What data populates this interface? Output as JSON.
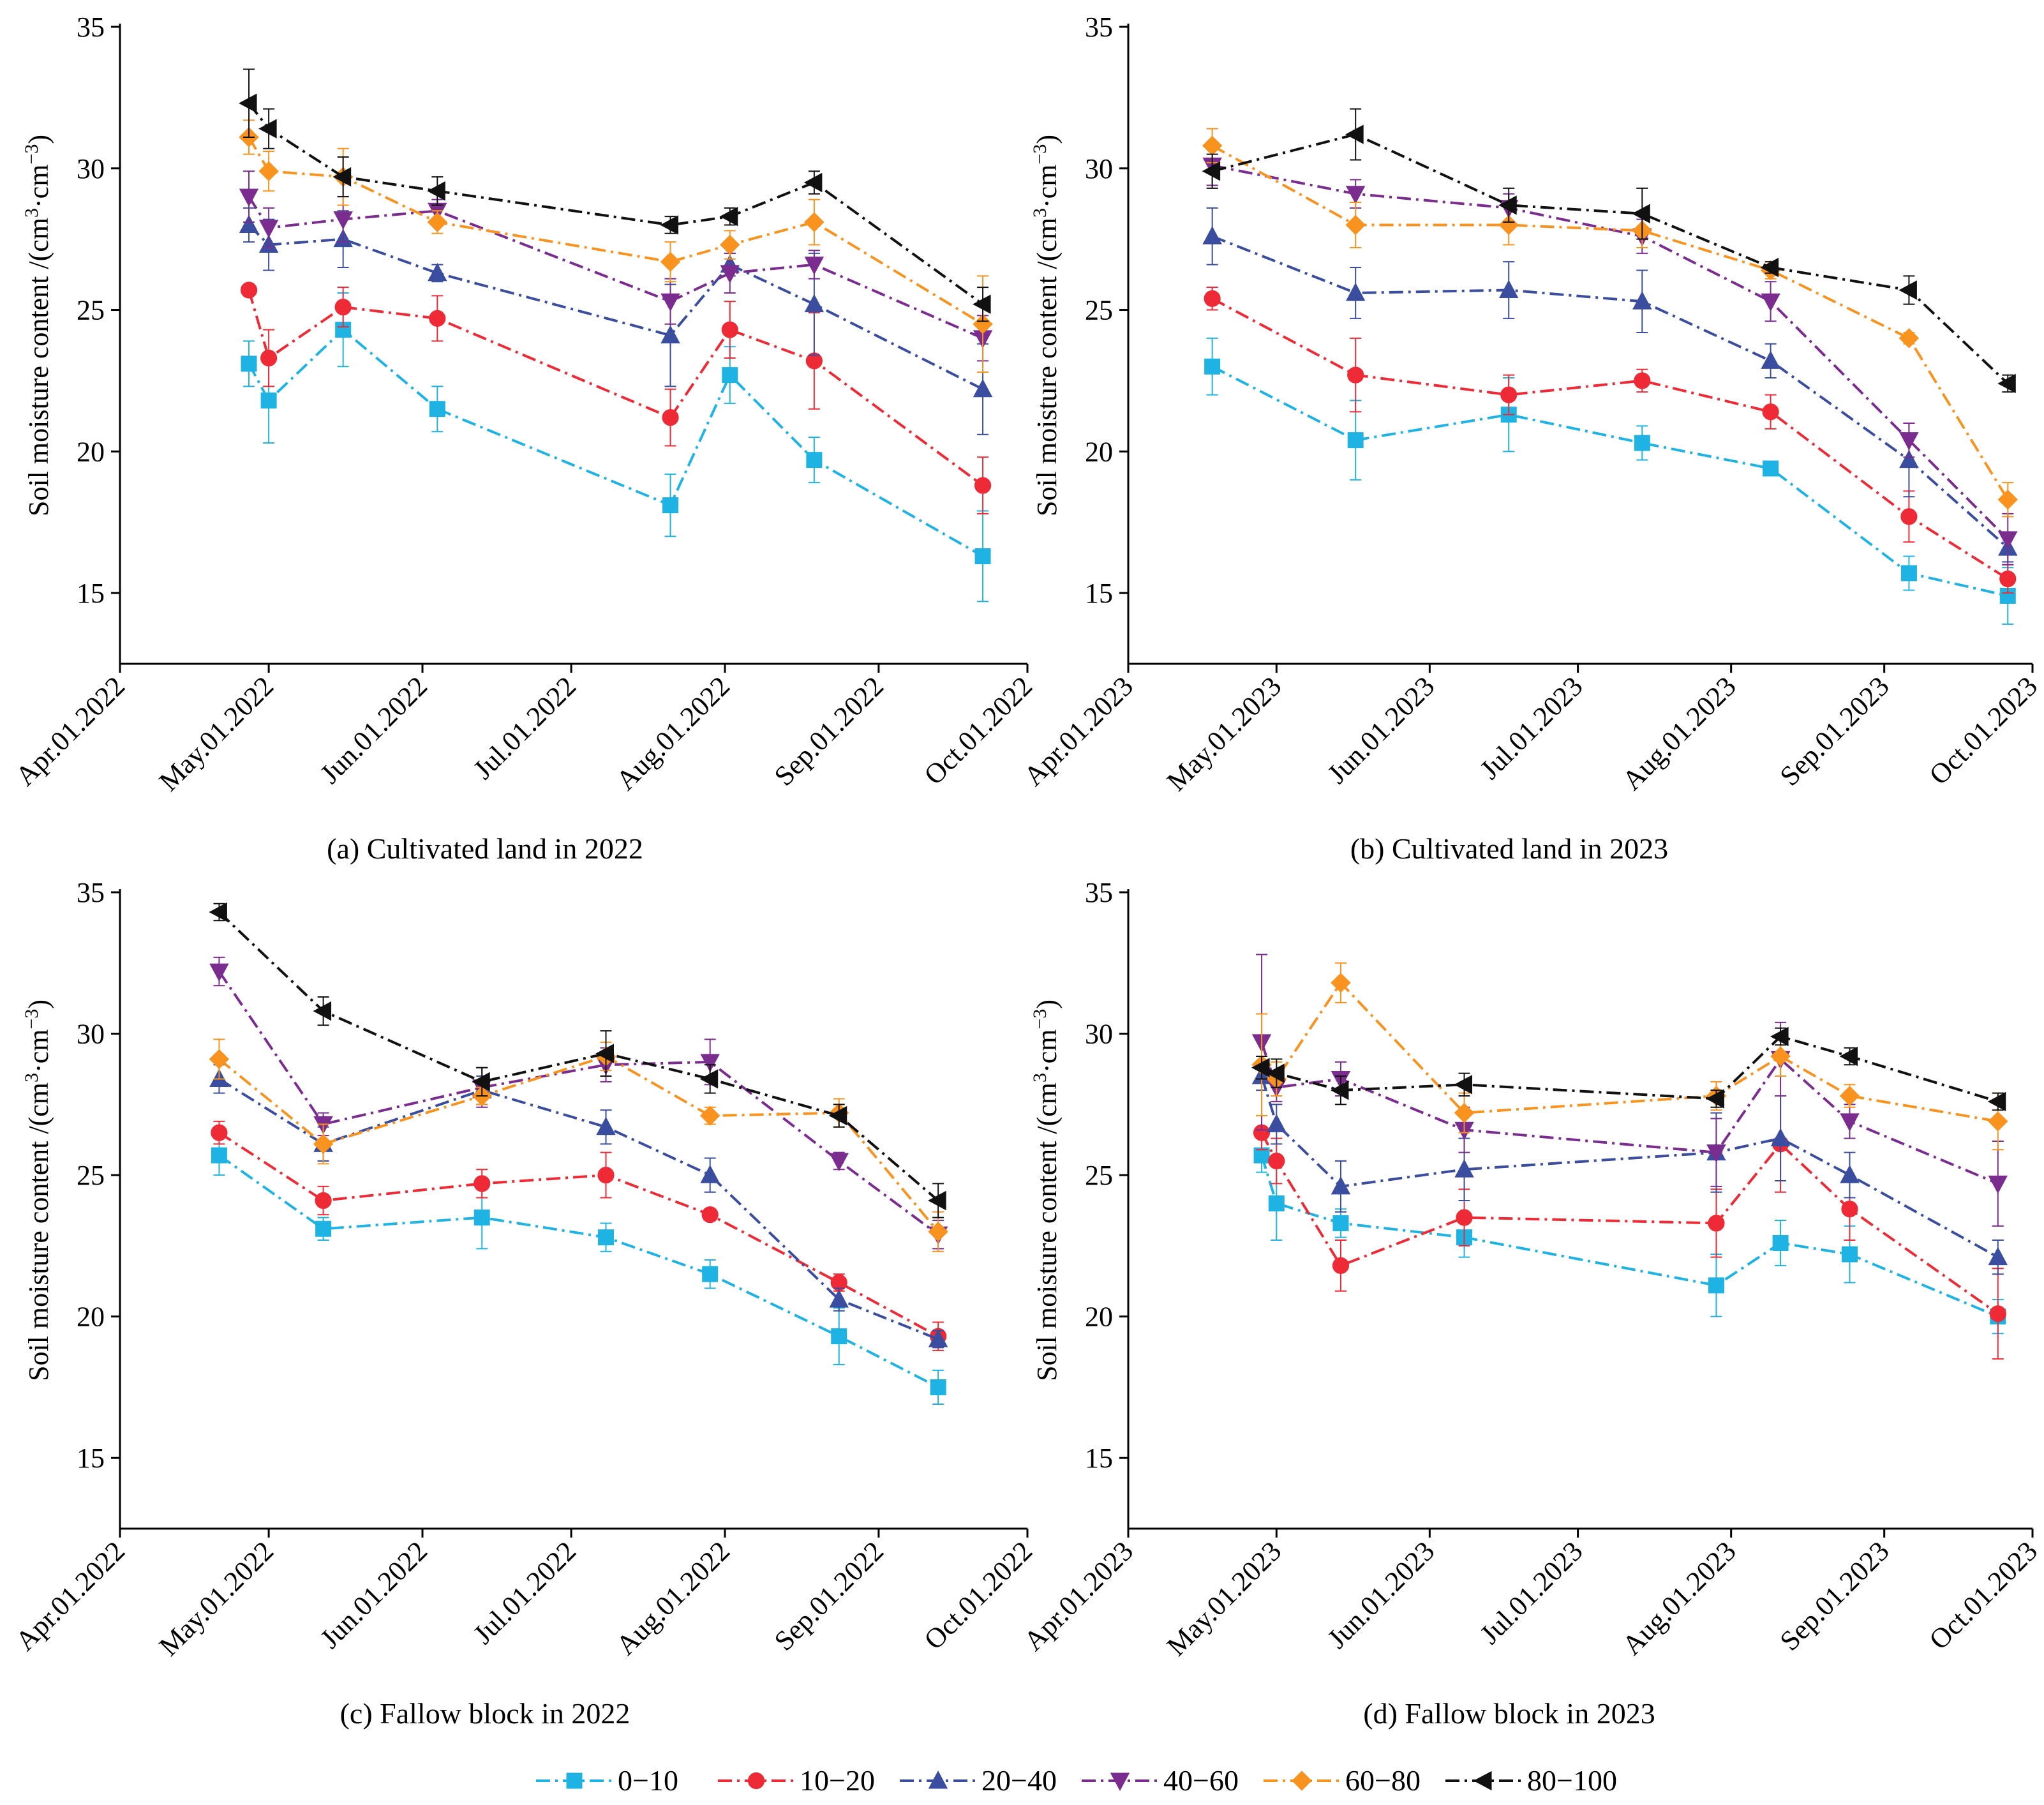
{
  "figure": {
    "ylabel": "Soil moisture content /(cm³·cm⁻³)",
    "ylabel_base": "Soil moisture content /(cm",
    "ylabel_sup1": "3",
    "ylabel_mid": "·cm",
    "ylabel_sup2": "−3",
    "ylabel_end": ")"
  },
  "legend": [
    {
      "label": "0−10",
      "color": "#1fb3e3",
      "marker": "square"
    },
    {
      "label": "10−20",
      "color": "#ee2a36",
      "marker": "circle"
    },
    {
      "label": "20−40",
      "color": "#3b4d9e",
      "marker": "triangle-up"
    },
    {
      "label": "40−60",
      "color": "#7a2c8f",
      "marker": "triangle-down"
    },
    {
      "label": "60−80",
      "color": "#f7931e",
      "marker": "diamond"
    },
    {
      "label": "80−100",
      "color": "#111111",
      "marker": "triangle-left"
    }
  ],
  "chart_data": [
    {
      "type": "line",
      "caption": "(a) Cultivated land in 2022",
      "ylim": [
        12.5,
        35
      ],
      "yticks": [
        15,
        20,
        25,
        30,
        35
      ],
      "x_start_label": "Apr.01.2022",
      "xtick_labels": [
        "Apr.01.2022",
        "May.01.2022",
        "Jun.01.2022",
        "Jul.01.2022",
        "Aug.01.2022",
        "Sep.01.2022",
        "Oct.01.2022"
      ],
      "xlim_days": [
        0,
        183
      ],
      "x_days": [
        26,
        30,
        45,
        64,
        111,
        123,
        140,
        174
      ],
      "series": [
        {
          "name": "0−10",
          "values": [
            23.1,
            21.8,
            24.3,
            21.5,
            18.1,
            22.7,
            19.7,
            16.3
          ],
          "errors": [
            0.8,
            1.5,
            1.3,
            0.8,
            1.1,
            1.0,
            0.8,
            1.6
          ]
        },
        {
          "name": "10−20",
          "values": [
            25.7,
            23.3,
            25.1,
            24.7,
            21.2,
            24.3,
            23.2,
            18.8
          ],
          "errors": [
            0.2,
            1.0,
            0.7,
            0.8,
            1.0,
            1.0,
            1.7,
            1.0
          ]
        },
        {
          "name": "20−40",
          "values": [
            28.0,
            27.3,
            27.5,
            26.3,
            24.1,
            26.6,
            25.2,
            22.2
          ],
          "errors": [
            0.6,
            0.9,
            1.0,
            0.3,
            1.8,
            0.4,
            1.8,
            1.6
          ]
        },
        {
          "name": "40−60",
          "values": [
            29.0,
            27.9,
            28.2,
            28.5,
            25.3,
            26.3,
            26.6,
            24.0
          ],
          "errors": [
            0.9,
            0.7,
            0.8,
            0.4,
            0.8,
            0.7,
            0.5,
            0.8
          ]
        },
        {
          "name": "60−80",
          "values": [
            31.1,
            29.9,
            29.7,
            28.1,
            26.7,
            27.3,
            28.1,
            24.5
          ],
          "errors": [
            0.6,
            0.7,
            1.0,
            0.4,
            0.7,
            0.5,
            0.8,
            1.7
          ]
        },
        {
          "name": "80−100",
          "values": [
            32.3,
            31.4,
            29.7,
            29.2,
            28.0,
            28.3,
            29.5,
            25.2
          ],
          "errors": [
            1.2,
            0.7,
            0.7,
            0.5,
            0.3,
            0.3,
            0.4,
            0.6
          ]
        }
      ]
    },
    {
      "type": "line",
      "caption": "(b) Cultivated land in 2023",
      "ylim": [
        12.5,
        35
      ],
      "yticks": [
        15,
        20,
        25,
        30,
        35
      ],
      "x_start_label": "Apr.01.2023",
      "xtick_labels": [
        "Apr.01.2023",
        "May.01.2023",
        "Jun.01.2023",
        "Jul.01.2023",
        "Aug.01.2023",
        "Sep.01.2023",
        "Oct.01.2023"
      ],
      "xlim_days": [
        0,
        183
      ],
      "x_days": [
        17,
        46,
        77,
        104,
        130,
        158,
        178
      ],
      "series": [
        {
          "name": "0−10",
          "values": [
            23.0,
            20.4,
            21.3,
            20.3,
            19.4,
            15.7,
            14.9
          ],
          "errors": [
            1.0,
            1.4,
            1.3,
            0.6,
            0.2,
            0.6,
            1.0
          ]
        },
        {
          "name": "10−20",
          "values": [
            25.4,
            22.7,
            22.0,
            22.5,
            21.4,
            17.7,
            15.5
          ],
          "errors": [
            0.4,
            1.3,
            0.7,
            0.4,
            0.6,
            0.9,
            0.5
          ]
        },
        {
          "name": "20−40",
          "values": [
            27.6,
            25.6,
            25.7,
            25.3,
            23.2,
            19.7,
            16.6
          ],
          "errors": [
            1.0,
            0.9,
            1.0,
            1.1,
            0.6,
            1.3,
            0.5
          ]
        },
        {
          "name": "40−60",
          "values": [
            30.1,
            29.1,
            28.6,
            27.6,
            25.3,
            20.4,
            16.9
          ],
          "errors": [
            0.7,
            0.5,
            0.5,
            0.6,
            0.7,
            0.6,
            0.9
          ]
        },
        {
          "name": "60−80",
          "values": [
            30.8,
            28.0,
            28.0,
            27.8,
            26.4,
            24.0,
            18.3
          ],
          "errors": [
            0.6,
            0.8,
            0.7,
            0.6,
            0.3,
            0.2,
            0.6
          ]
        },
        {
          "name": "80−100",
          "values": [
            29.9,
            31.2,
            28.7,
            28.4,
            26.5,
            25.7,
            22.4
          ],
          "errors": [
            0.6,
            0.9,
            0.6,
            0.9,
            0.2,
            0.5,
            0.3
          ]
        }
      ]
    },
    {
      "type": "line",
      "caption": "(c) Fallow block in 2022",
      "ylim": [
        12.5,
        35
      ],
      "yticks": [
        15,
        20,
        25,
        30,
        35
      ],
      "x_start_label": "Apr.01.2022",
      "xtick_labels": [
        "Apr.01.2022",
        "May.01.2022",
        "Jun.01.2022",
        "Jul.01.2022",
        "Aug.01.2022",
        "Sep.01.2022",
        "Oct.01.2022"
      ],
      "xlim_days": [
        0,
        183
      ],
      "x_days": [
        20,
        41,
        73,
        98,
        119,
        145,
        165
      ],
      "series": [
        {
          "name": "0−10",
          "values": [
            25.7,
            23.1,
            23.5,
            22.8,
            21.5,
            19.3,
            17.5
          ],
          "errors": [
            0.7,
            0.4,
            1.1,
            0.5,
            0.5,
            1.0,
            0.6
          ]
        },
        {
          "name": "10−20",
          "values": [
            26.5,
            24.1,
            24.7,
            25.0,
            23.6,
            21.2,
            19.3
          ],
          "errors": [
            0.4,
            0.5,
            0.5,
            0.8,
            0.2,
            0.3,
            0.5
          ]
        },
        {
          "name": "20−40",
          "values": [
            28.4,
            26.1,
            28.0,
            26.7,
            25.0,
            20.6,
            19.2
          ],
          "errors": [
            0.5,
            0.6,
            0.5,
            0.6,
            0.6,
            0.4,
            0.3
          ]
        },
        {
          "name": "40−60",
          "values": [
            32.2,
            26.8,
            28.1,
            28.9,
            29.0,
            25.5,
            22.9
          ],
          "errors": [
            0.5,
            0.4,
            0.7,
            0.6,
            0.8,
            0.3,
            0.5
          ]
        },
        {
          "name": "60−80",
          "values": [
            29.1,
            26.1,
            27.8,
            29.2,
            27.1,
            27.2,
            23.0
          ],
          "errors": [
            0.7,
            0.7,
            0.3,
            0.5,
            0.3,
            0.5,
            0.7
          ]
        },
        {
          "name": "80−100",
          "values": [
            34.3,
            30.8,
            28.3,
            29.3,
            28.4,
            27.1,
            24.1
          ],
          "errors": [
            0.3,
            0.5,
            0.5,
            0.8,
            0.5,
            0.4,
            0.6
          ]
        }
      ]
    },
    {
      "type": "line",
      "caption": "(d) Fallow block  in 2023",
      "ylim": [
        12.5,
        35
      ],
      "yticks": [
        15,
        20,
        25,
        30,
        35
      ],
      "x_start_label": "Apr.01.2023",
      "xtick_labels": [
        "Apr.01.2023",
        "May.01.2023",
        "Jun.01.2023",
        "Jul.01.2023",
        "Aug.01.2023",
        "Sep.01.2023",
        "Oct.01.2023"
      ],
      "xlim_days": [
        0,
        183
      ],
      "x_days": [
        27,
        30,
        43,
        68,
        119,
        132,
        146,
        176
      ],
      "series": [
        {
          "name": "0−10",
          "values": [
            25.7,
            24.0,
            23.3,
            22.8,
            21.1,
            22.6,
            22.2,
            20.0
          ],
          "errors": [
            0.6,
            1.3,
            0.5,
            0.7,
            1.1,
            0.8,
            1.0,
            0.6
          ]
        },
        {
          "name": "10−20",
          "values": [
            26.5,
            25.5,
            21.8,
            23.5,
            23.3,
            26.1,
            23.8,
            20.1
          ],
          "errors": [
            0.6,
            0.8,
            0.9,
            1.0,
            1.2,
            1.7,
            1.1,
            1.6
          ]
        },
        {
          "name": "20−40",
          "values": [
            28.5,
            26.8,
            24.6,
            25.2,
            25.8,
            26.3,
            25.0,
            22.1
          ],
          "errors": [
            0.5,
            0.7,
            0.9,
            1.1,
            1.4,
            1.5,
            0.8,
            0.6
          ]
        },
        {
          "name": "40−60",
          "values": [
            29.7,
            28.1,
            28.4,
            26.6,
            25.8,
            29.1,
            26.9,
            24.7
          ],
          "errors": [
            3.1,
            0.5,
            0.6,
            0.8,
            1.2,
            1.3,
            0.6,
            1.5
          ]
        },
        {
          "name": "60−80",
          "values": [
            28.9,
            28.4,
            31.8,
            27.2,
            27.8,
            29.2,
            27.8,
            26.9
          ],
          "errors": [
            1.8,
            0.6,
            0.7,
            0.7,
            0.5,
            0.7,
            0.4,
            1.0
          ]
        },
        {
          "name": "80−100",
          "values": [
            28.8,
            28.6,
            28.0,
            28.2,
            27.7,
            29.9,
            29.2,
            27.6
          ],
          "errors": [
            0.4,
            0.5,
            0.5,
            0.4,
            0.3,
            0.3,
            0.3,
            0.3
          ]
        }
      ]
    }
  ]
}
